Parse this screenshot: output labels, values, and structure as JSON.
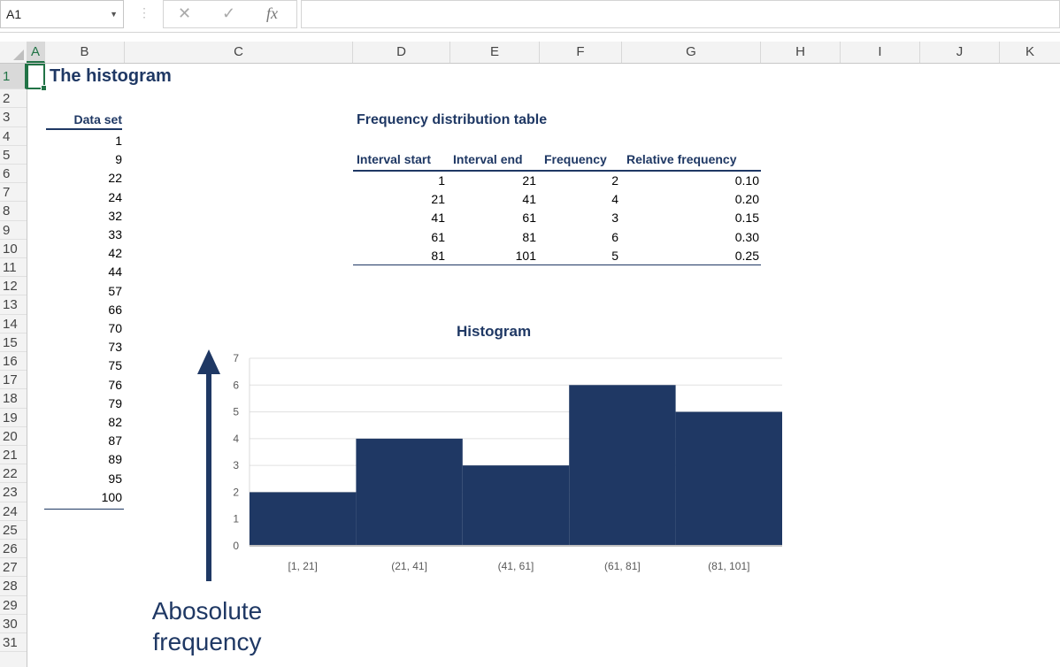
{
  "formula_bar": {
    "name_box": "A1",
    "cancel_icon": "close-icon",
    "enter_icon": "checkmark-icon",
    "fx_label": "fx",
    "formula": ""
  },
  "columns": [
    "A",
    "B",
    "C",
    "D",
    "E",
    "F",
    "G",
    "H",
    "I",
    "J",
    "K"
  ],
  "rows": [
    "1",
    "2",
    "3",
    "4",
    "5",
    "6",
    "7",
    "8",
    "9",
    "10",
    "11",
    "12",
    "13",
    "14",
    "15",
    "16",
    "17",
    "18",
    "19",
    "20",
    "21",
    "22",
    "23",
    "24",
    "25",
    "26",
    "27",
    "28",
    "29",
    "30",
    "31"
  ],
  "sheet": {
    "title": "The histogram",
    "data_set_header": "Data set",
    "data_set": [
      "1",
      "9",
      "22",
      "24",
      "32",
      "33",
      "42",
      "44",
      "57",
      "66",
      "70",
      "73",
      "75",
      "76",
      "79",
      "82",
      "87",
      "89",
      "95",
      "100"
    ],
    "fdt_title": "Frequency distribution table",
    "fdt_headers": [
      "Interval start",
      "Interval end",
      "Frequency",
      "Relative frequency"
    ],
    "fdt_rows": [
      [
        "1",
        "21",
        "2",
        "0.10"
      ],
      [
        "21",
        "41",
        "4",
        "0.20"
      ],
      [
        "41",
        "61",
        "3",
        "0.15"
      ],
      [
        "61",
        "81",
        "6",
        "0.30"
      ],
      [
        "81",
        "101",
        "5",
        "0.25"
      ]
    ],
    "annotation_line1": "Abosolute",
    "annotation_line2": "frequency"
  },
  "chart_data": {
    "type": "bar",
    "title": "Histogram",
    "categories": [
      "[1, 21]",
      "(21, 41]",
      "(41, 61]",
      "(61, 81]",
      "(81, 101]"
    ],
    "values": [
      2,
      4,
      3,
      6,
      5
    ],
    "ylim": [
      0,
      7
    ],
    "yticks": [
      "0",
      "1",
      "2",
      "3",
      "4",
      "5",
      "6",
      "7"
    ],
    "bar_color": "#1f3864",
    "grid": true
  },
  "colors": {
    "accent": "#1f3864",
    "excel_green": "#217346"
  }
}
